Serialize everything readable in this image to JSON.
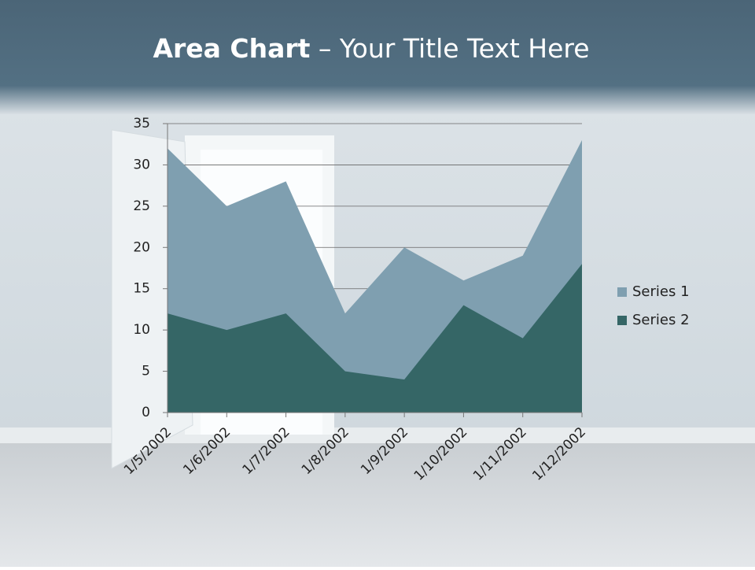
{
  "chart_data": {
    "type": "area",
    "title": [
      "Area Chart",
      "– Your Title Text Here"
    ],
    "categories": [
      "1/5/2002",
      "1/6/2002",
      "1/7/2002",
      "1/8/2002",
      "1/9/2002",
      "1/10/2002",
      "1/11/2002",
      "1/12/2002"
    ],
    "series": [
      {
        "name": "Series 1",
        "color": "#7f9fb0",
        "values": [
          32,
          25,
          28,
          12,
          20,
          16,
          19,
          33
        ]
      },
      {
        "name": "Series 2",
        "color": "#356666",
        "values": [
          12,
          10,
          12,
          5,
          4,
          13,
          9,
          18
        ]
      }
    ],
    "ylim": [
      0,
      35
    ],
    "yticks": [
      0,
      5,
      10,
      15,
      20,
      25,
      30,
      35
    ],
    "grid": true,
    "legend": "right"
  }
}
